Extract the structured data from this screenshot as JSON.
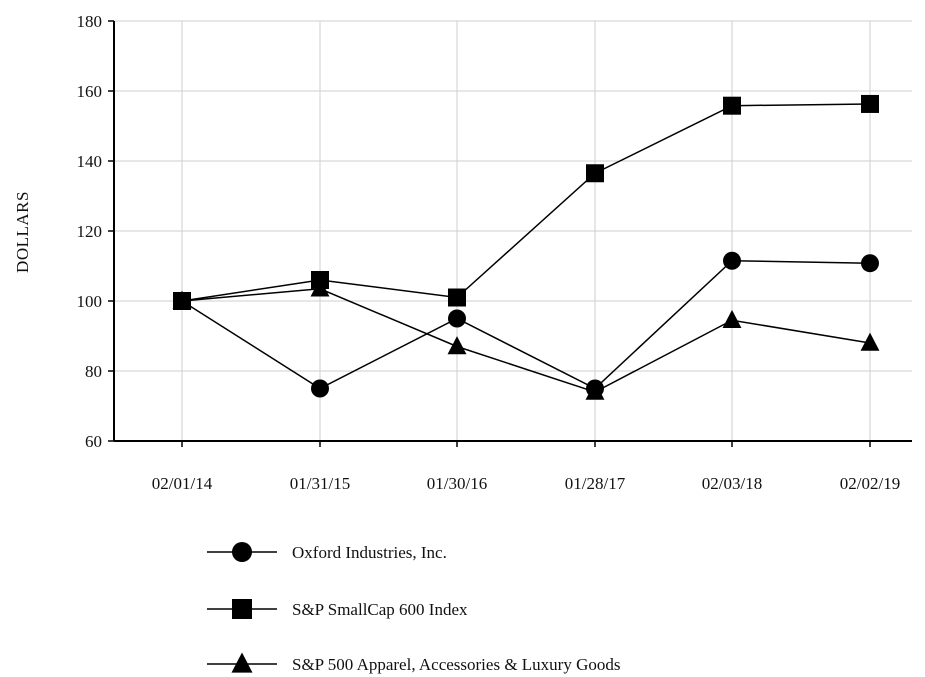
{
  "chart_data": {
    "type": "line",
    "title": "",
    "xlabel": "",
    "ylabel": "DOLLARS",
    "ylim": [
      60,
      180
    ],
    "yticks": [
      60,
      80,
      100,
      120,
      140,
      160,
      180
    ],
    "categories": [
      "02/01/14",
      "01/31/15",
      "01/30/16",
      "01/28/17",
      "02/03/18",
      "02/02/19"
    ],
    "grid": true,
    "legend_position": "bottom",
    "series": [
      {
        "name": "Oxford Industries, Inc.",
        "marker": "circle",
        "values": [
          100,
          75,
          95,
          75,
          111.5,
          110.8
        ]
      },
      {
        "name": "S&P SmallCap 600 Index",
        "marker": "square",
        "values": [
          100,
          106,
          101,
          136.5,
          155.8,
          156.3
        ]
      },
      {
        "name": "S&P 500 Apparel, Accessories & Luxury Goods",
        "marker": "triangle",
        "values": [
          100,
          103.5,
          87,
          74,
          94.5,
          88
        ]
      }
    ]
  }
}
